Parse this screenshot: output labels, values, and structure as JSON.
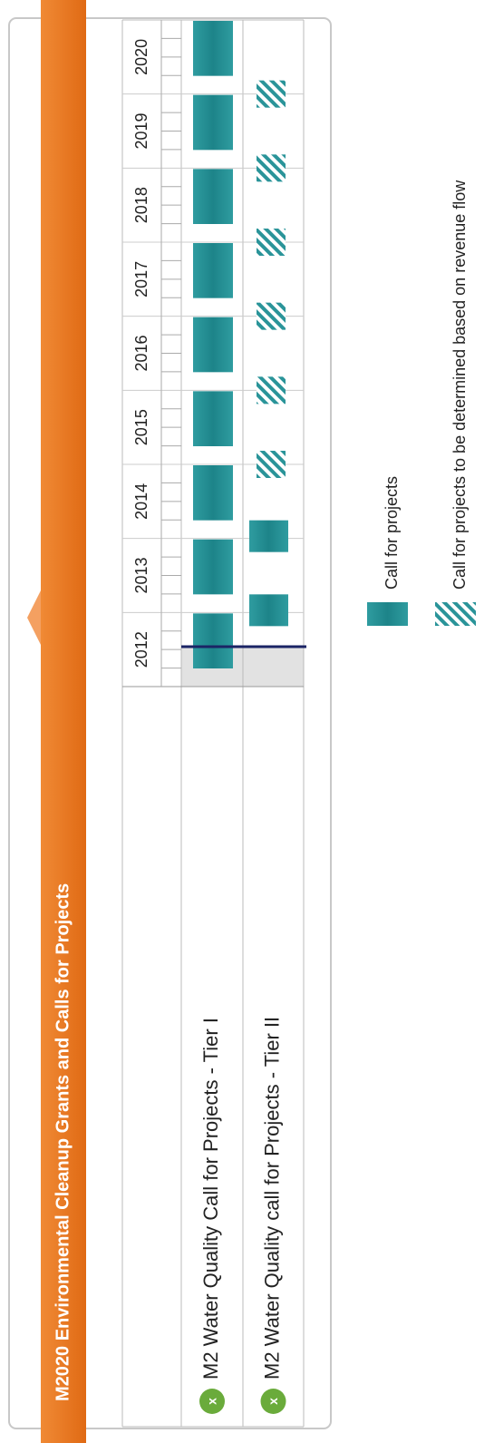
{
  "title": "M2020 Environmental Cleanup Grants and Calls for Projects",
  "years": [
    "2012",
    "2013",
    "2014",
    "2015",
    "2016",
    "2017",
    "2018",
    "2019",
    "2020"
  ],
  "rows": [
    {
      "icon": "x",
      "label": "M2 Water Quality Call for Projects - Tier I",
      "schedule": [
        0,
        0,
        0,
        0,
        0,
        0,
        0,
        0,
        0
      ]
    },
    {
      "icon": "x",
      "label": "M2 Water Quality call for Projects - Tier II",
      "schedule": [
        0,
        0,
        1,
        1,
        1,
        1,
        1,
        1,
        null
      ]
    }
  ],
  "legend": [
    {
      "label": "Call for projects"
    },
    {
      "label": "Call for projects to be determined based on revenue flow"
    }
  ]
}
